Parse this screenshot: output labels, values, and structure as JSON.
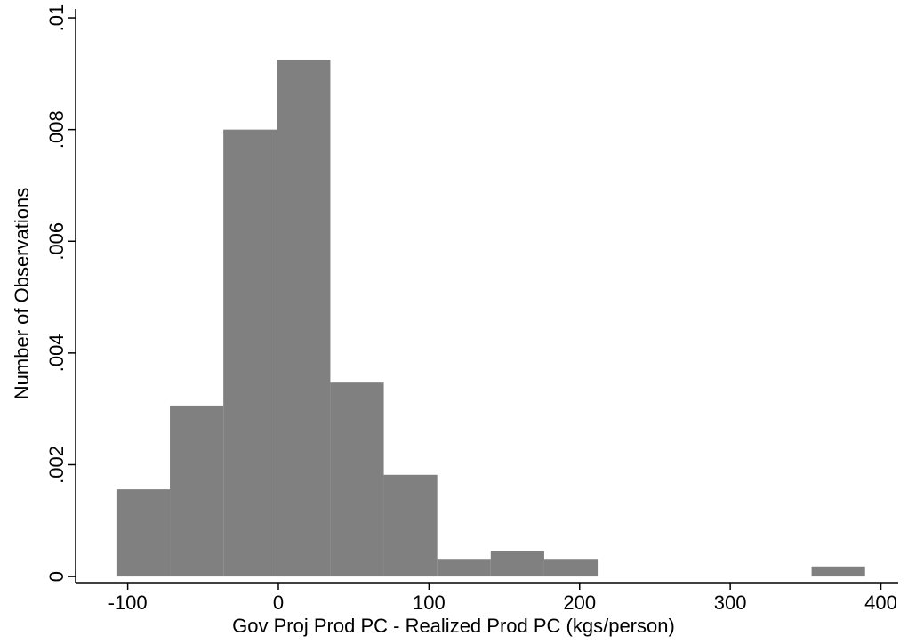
{
  "chart_data": {
    "type": "histogram",
    "x_label": "Gov Proj Prod PC - Realized Prod PC (kgs/person)",
    "y_label": "Number of Observations",
    "bins": [
      -107.5,
      -72,
      -36.5,
      -1,
      34.5,
      70,
      105.5,
      141,
      176.5,
      212,
      247.5,
      283,
      318.5,
      354,
      389.5
    ],
    "values": [
      0.00156,
      0.00306,
      0.008,
      0.00925,
      0.00347,
      0.00182,
      0.0003,
      0.00045,
      0.0003,
      0,
      0,
      0,
      0,
      0.00018
    ],
    "color": "#808080",
    "xlim": [
      -134.6,
      411.5
    ],
    "ylim": [
      -0.00011,
      0.01016
    ],
    "xticks": [
      -100,
      0,
      100,
      200,
      300,
      400
    ],
    "yticks": [
      0,
      {
        "value": 0.002,
        "label": ".002"
      },
      {
        "value": 0.004,
        "label": ".004"
      },
      {
        "value": 0.006,
        "label": ".006"
      },
      {
        "value": 0.008,
        "label": ".008"
      },
      {
        "value": 0.01,
        "label": ".01"
      }
    ]
  }
}
